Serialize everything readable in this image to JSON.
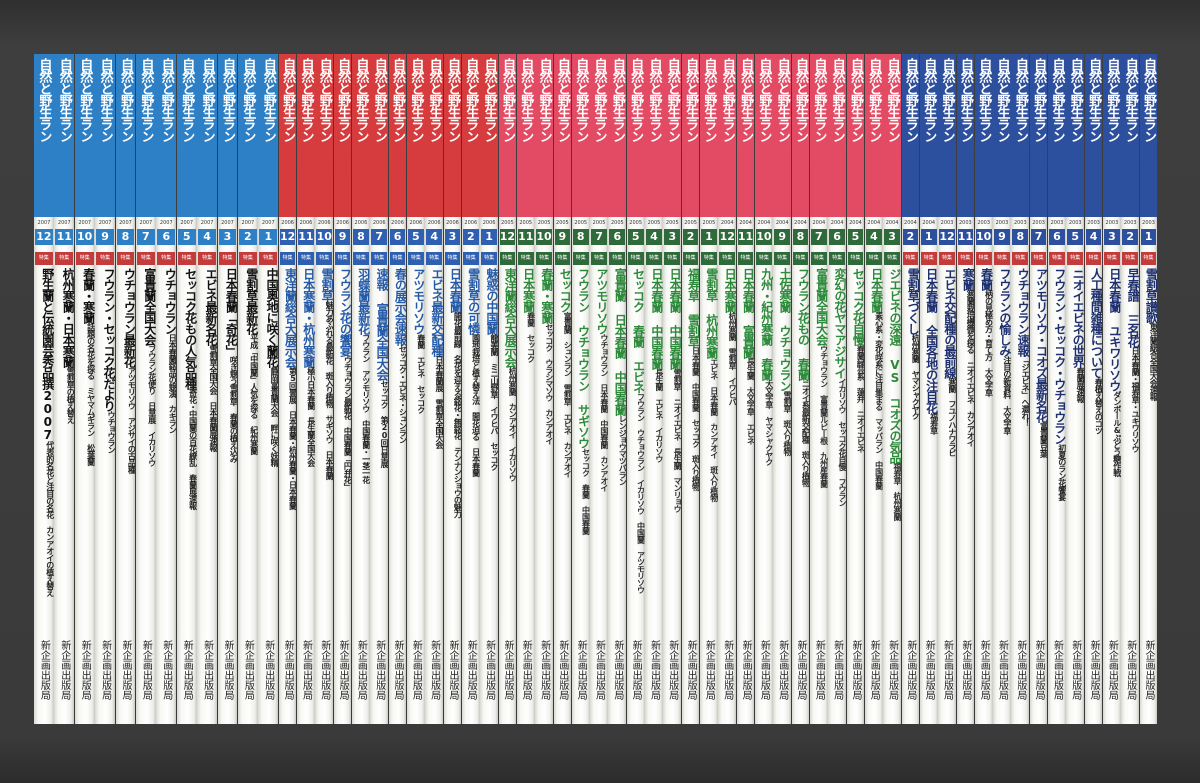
{
  "series_title": "自然と野生ラン",
  "publisher": "新企画出版局",
  "special_tag": "特集",
  "colors": {
    "blue_band": "#2d7fc6",
    "red_band": "#d63c3e",
    "pink_band": "#e34a63",
    "navy_band": "#2c4f9e"
  },
  "books": [
    {
      "style": "blue",
      "year": "2007",
      "issue": "12",
      "headline": "野生蘭と伝統園芸秀品撰2007",
      "sub": "代表的名花と注目の名花 カンアオイの植え替え"
    },
    {
      "style": "blue",
      "year": "2007",
      "issue": "11",
      "headline": "杭州寒蘭・日本寒蘭",
      "sub": "雪割草の植え替え"
    },
    {
      "style": "blue",
      "year": "2007",
      "issue": "10",
      "headline": "春蘭・寒蘭",
      "sub": "話題の名花を探る ミヤマムギラン 松葉蘭"
    },
    {
      "style": "blue",
      "year": "2007",
      "issue": "9",
      "headline": "フウラン・セッコク花だより",
      "sub": "ウチョウラン"
    },
    {
      "style": "blue",
      "year": "2007",
      "issue": "8",
      "headline": "ウチョウラン最新花",
      "sub": "アツモリソウ アジサイの古品種"
    },
    {
      "style": "blue",
      "year": "2007",
      "issue": "7",
      "headline": "富貴蘭全国大会",
      "sub": "フウラン花便り 日草展 イカリソウ"
    },
    {
      "style": "blue",
      "year": "2007",
      "issue": "6",
      "headline": "ウチョウラン",
      "sub": "日本春蘭銘品の競演 カキラン"
    },
    {
      "style": "blue",
      "year": "2007",
      "issue": "5",
      "headline": "セッコク花もの人気品種",
      "sub": "奇花・中国蘭の百花繚乱 春蘭展速報"
    },
    {
      "style": "blue",
      "year": "2007",
      "issue": "4",
      "headline": "エビネ最新名花",
      "sub": "雪割草全国大会 日本春蘭展速報"
    },
    {
      "style": "blue",
      "year": "2007",
      "issue": "3",
      "headline": "日本春蘭「奇花」",
      "sub": "咲き競う雪割草 春蘭の植え込み"
    },
    {
      "style": "blue",
      "year": "2007",
      "issue": "2",
      "headline": "雪割草最新花",
      "sub": "平成「中国蘭」人気を探る 紀州寒蘭"
    },
    {
      "style": "blue",
      "year": "2007",
      "issue": "1",
      "headline": "中国奥地に咲く蘭花",
      "sub": "静岡富貴蘭大会 畔に咲く妖精"
    },
    {
      "style": "red",
      "year": "2006",
      "issue": "12",
      "headline": "東洋蘭総合大展示会",
      "sub": "第5回景展 日本春蘭・杭州春蘭・日本春蘭"
    },
    {
      "style": "red",
      "year": "2006",
      "issue": "11",
      "headline": "日本寒蘭・杭州寒蘭",
      "sub": "極小日本春蘭 長生蘭全国大会"
    },
    {
      "style": "red",
      "year": "2006",
      "issue": "10",
      "headline": "雪割草",
      "sub": "魅力あふれる最新花 斑入り植物 サギソウ 日本春蘭"
    },
    {
      "style": "red",
      "year": "2006",
      "issue": "9",
      "headline": "フウラン花の饗宴",
      "sub": "ウチョウラン最新花 中国春蘭「円弁花」"
    },
    {
      "style": "red",
      "year": "2006",
      "issue": "8",
      "headline": "羽蝶蘭最新花",
      "sub": "フウラン アツモリソウ 中国春蘭・一茎一花"
    },
    {
      "style": "red",
      "year": "2006",
      "issue": "7",
      "headline": "速報 富貴蘭全国大会",
      "sub": "セッコク 第20回日草展"
    },
    {
      "style": "red",
      "year": "2006",
      "issue": "6",
      "headline": "春の展示会速報",
      "sub": "セッコク・エビネ・シュンラン"
    },
    {
      "style": "red",
      "year": "2006",
      "issue": "5",
      "headline": "アツモリソウ",
      "sub": "春蘭 エビネ セッコク"
    },
    {
      "style": "red",
      "year": "2006",
      "issue": "4",
      "headline": "エビネ最新交配種",
      "sub": "日本春蘭展 雪割草全国大会"
    },
    {
      "style": "red",
      "year": "2006",
      "issue": "3",
      "headline": "日本春蘭",
      "sub": "開花最前線 名花を迎える銘花・無銘花 テンナンショウの魅力"
    },
    {
      "style": "red",
      "year": "2006",
      "issue": "2",
      "headline": "雪割草の可憐",
      "sub": "園地栽培と植え替え法 開花迫る 日本春蘭"
    },
    {
      "style": "red",
      "year": "2006",
      "issue": "1",
      "headline": "魅惑の中国蘭",
      "sub": "龍美蘭 ミニ山野草 イワヒバ セッコク"
    },
    {
      "style": "pink",
      "year": "2005",
      "issue": "12",
      "headline": "東洋蘭総合大展示会",
      "sub": "杭州寒蘭 カンアオイ イカリソウ"
    },
    {
      "style": "pink",
      "year": "2005",
      "issue": "11",
      "headline": "日本寒蘭",
      "sub": "春蘭 セッコク"
    },
    {
      "style": "pink",
      "year": "2005",
      "issue": "10",
      "headline": "春蘭・寒蘭",
      "sub": "セッコク ウラシマソウ カンアオイ"
    },
    {
      "style": "pink",
      "year": "2005",
      "issue": "9",
      "headline": "セッコク",
      "sub": "富貴蘭 シュンラン 雪割草 エビネ カンアオイ"
    },
    {
      "style": "pink",
      "year": "2005",
      "issue": "8",
      "headline": "フウラン ウチョウラン サギソウ",
      "sub": "セッコク 春蘭 中国春蘭"
    },
    {
      "style": "pink",
      "year": "2005",
      "issue": "7",
      "headline": "アツモリソウ",
      "sub": "ウチョウラン 日本春蘭 中国春蘭 カンアオイ"
    },
    {
      "style": "pink",
      "year": "2005",
      "issue": "6",
      "headline": "富貴蘭 日本春蘭 中国春蘭",
      "sub": "レンジョウマツバラン"
    },
    {
      "style": "pink",
      "year": "2005",
      "issue": "5",
      "headline": "セッコク 春蘭 エビネ",
      "sub": "フウラン ウチョウラン イカリソウ 中国蘭 アツモリソウ"
    },
    {
      "style": "pink",
      "year": "2005",
      "issue": "4",
      "headline": "日本春蘭 中国春蘭",
      "sub": "長生蘭 エビネ イカリソウ"
    },
    {
      "style": "pink",
      "year": "2005",
      "issue": "3",
      "headline": "日本春蘭 中国春蘭",
      "sub": "雪割草 ニオイエビネ 長生蘭 マンリョウ"
    },
    {
      "style": "pink",
      "year": "2005",
      "issue": "2",
      "headline": "福寿草 雪割草",
      "sub": "日本春蘭 中国春蘭 セッコク 斑入り植物"
    },
    {
      "style": "pink",
      "year": "2005",
      "issue": "1",
      "headline": "雪割草 杭州寒蘭",
      "sub": "エビネ 日本春蘭 カンアオイ 斑入り植物"
    },
    {
      "style": "pink",
      "year": "2004",
      "issue": "12",
      "headline": "日本寒蘭",
      "sub": "杭州寒蘭 雪割草 イワヒバ"
    },
    {
      "style": "pink",
      "year": "2004",
      "issue": "11",
      "headline": "日本春蘭 富貴蘭",
      "sub": "長生蘭 大文字草 エビネ"
    },
    {
      "style": "pink",
      "year": "2004",
      "issue": "10",
      "headline": "九州・紀州寒蘭 春蘭",
      "sub": "大文字草 ヤマシャクヤク"
    },
    {
      "style": "pink",
      "year": "2004",
      "issue": "9",
      "headline": "土佐寒蘭 ウチョウラン",
      "sub": "雪割草 斑入り植物"
    },
    {
      "style": "pink",
      "year": "2004",
      "issue": "8",
      "headline": "フウラン花もの 春蘭",
      "sub": "ニオイ系最新交配種 斑入り植物"
    },
    {
      "style": "pink",
      "year": "2004",
      "issue": "7",
      "headline": "富貴蘭全国大会",
      "sub": "ウチョウラン 富貴蘭ルビー根 九州産春蘭"
    },
    {
      "style": "pink",
      "year": "2004",
      "issue": "6",
      "headline": "変幻の花ヤマアジサイ",
      "sub": "イカリソウ セッコク花自慢 フウラン"
    },
    {
      "style": "pink",
      "year": "2004",
      "issue": "5",
      "headline": "セッコク花自慢",
      "sub": "春蘭緑芸系 蓮弁 ニオイエビネ"
    },
    {
      "style": "pink",
      "year": "2004",
      "issue": "4",
      "headline": "日本春蘭",
      "sub": "素心系・変化咲系に注目集まる マッバラン 中国春蘭"
    },
    {
      "style": "pink",
      "year": "2004",
      "issue": "3",
      "headline": "ジエビネの深遠 VS コオズの気品",
      "sub": "福寿草 杭州寒蘭"
    },
    {
      "style": "navy",
      "year": "2004",
      "issue": "2",
      "headline": "雪割草づくし",
      "sub": "杭州寒蘭 ヤマシャクヤク"
    },
    {
      "style": "navy",
      "year": "2004",
      "issue": "1",
      "headline": "日本春蘭 全国各地の注目花",
      "sub": "福寿草"
    },
    {
      "style": "navy",
      "year": "2003",
      "issue": "12",
      "headline": "エビネ交配種の最前線",
      "sub": "寒蘭 フユノハナワラビ"
    },
    {
      "style": "navy",
      "year": "2003",
      "issue": "11",
      "headline": "寒蘭",
      "sub": "寒蘭栽培機微を探る ニオイエビネ カンアオイ"
    },
    {
      "style": "navy",
      "year": "2003",
      "issue": "10",
      "headline": "春蘭",
      "sub": "柄の見極め方・育て方 大文字草"
    },
    {
      "style": "navy",
      "year": "2003",
      "issue": "9",
      "headline": "フウランの愉しみ",
      "sub": "注目の新資料 大文字草"
    },
    {
      "style": "navy",
      "year": "2003",
      "issue": "8",
      "headline": "ウチョウラン速報",
      "sub": "「ジエビネ」へ還れ！"
    },
    {
      "style": "navy",
      "year": "2003",
      "issue": "7",
      "headline": "アツモリソウ・コオズ最新名花",
      "sub": "富貴蘭豆葉"
    },
    {
      "style": "navy",
      "year": "2003",
      "issue": "6",
      "headline": "フウラン・セッコク・ウチョウラン",
      "sub": "初夏のラン花饗宴"
    },
    {
      "style": "navy",
      "year": "2003",
      "issue": "5",
      "headline": "ニオイエビネの世界",
      "sub": "春蘭展速報"
    },
    {
      "style": "navy",
      "year": "2003",
      "issue": "4",
      "headline": "人工種間雑種について",
      "sub": "春植え替えのコツ"
    },
    {
      "style": "navy",
      "year": "2003",
      "issue": "3",
      "headline": "日本春蘭 ユキワリソウ",
      "sub": "ダンボール&ぷどう糖作戦"
    },
    {
      "style": "navy",
      "year": "2003",
      "issue": "2",
      "headline": "早春譜 三名花",
      "sub": "日本春蘭・福寿草・ユキワリソウ"
    },
    {
      "style": "navy",
      "year": "2003",
      "issue": "1",
      "headline": "雪割草讃歌",
      "sub": "東洋蘭総合全国大会速報"
    }
  ]
}
